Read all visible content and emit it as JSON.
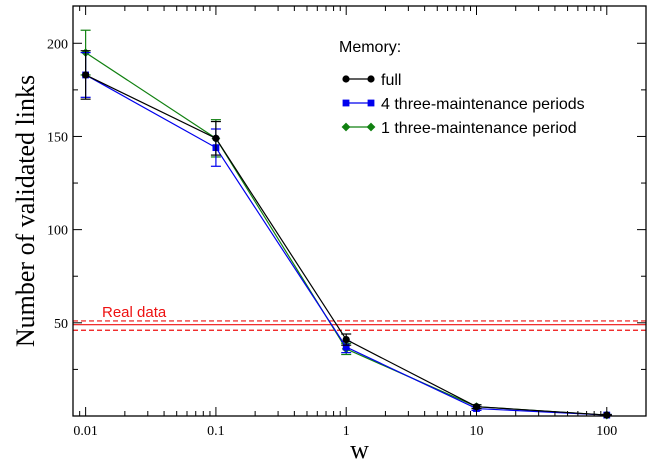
{
  "chart_data": {
    "type": "line",
    "xlabel": "w",
    "ylabel": "Number of validated links",
    "x_scale": "log",
    "xlim": [
      0.008,
      200
    ],
    "ylim": [
      0,
      220
    ],
    "x_ticks": [
      0.01,
      0.1,
      1,
      10,
      100
    ],
    "x_tick_labels": [
      "0.01",
      "0.1",
      "1",
      "10",
      "100"
    ],
    "y_ticks": [
      50,
      100,
      150,
      200
    ],
    "y_tick_labels": [
      "50",
      "100",
      "150",
      "200"
    ],
    "grid": false,
    "legend": {
      "title": "Memory:",
      "placement": "top-right"
    },
    "series": [
      {
        "name": "full",
        "color": "#000000",
        "marker": "circle",
        "x": [
          0.01,
          0.1,
          1,
          10,
          100
        ],
        "y": [
          183,
          149,
          41,
          5,
          0.5
        ],
        "err": [
          13,
          9,
          3,
          1,
          0.3
        ]
      },
      {
        "name": "4 three-maintenance periods",
        "color": "#0000ee",
        "marker": "square",
        "x": [
          0.01,
          0.1,
          1,
          10,
          100
        ],
        "y": [
          183,
          144,
          37,
          4,
          0.5
        ],
        "err": [
          12,
          10,
          3,
          1,
          0.3
        ]
      },
      {
        "name": "1 three-maintenance period",
        "color": "#108010",
        "marker": "diamond",
        "x": [
          0.01,
          0.1,
          1,
          10,
          100
        ],
        "y": [
          195,
          149,
          36,
          5,
          0.5
        ],
        "err": [
          12,
          10,
          3,
          1,
          0.3
        ]
      }
    ],
    "reference": {
      "label": "Real data",
      "color": "#ee1111",
      "value": 49,
      "lower": 46,
      "upper": 51
    }
  }
}
